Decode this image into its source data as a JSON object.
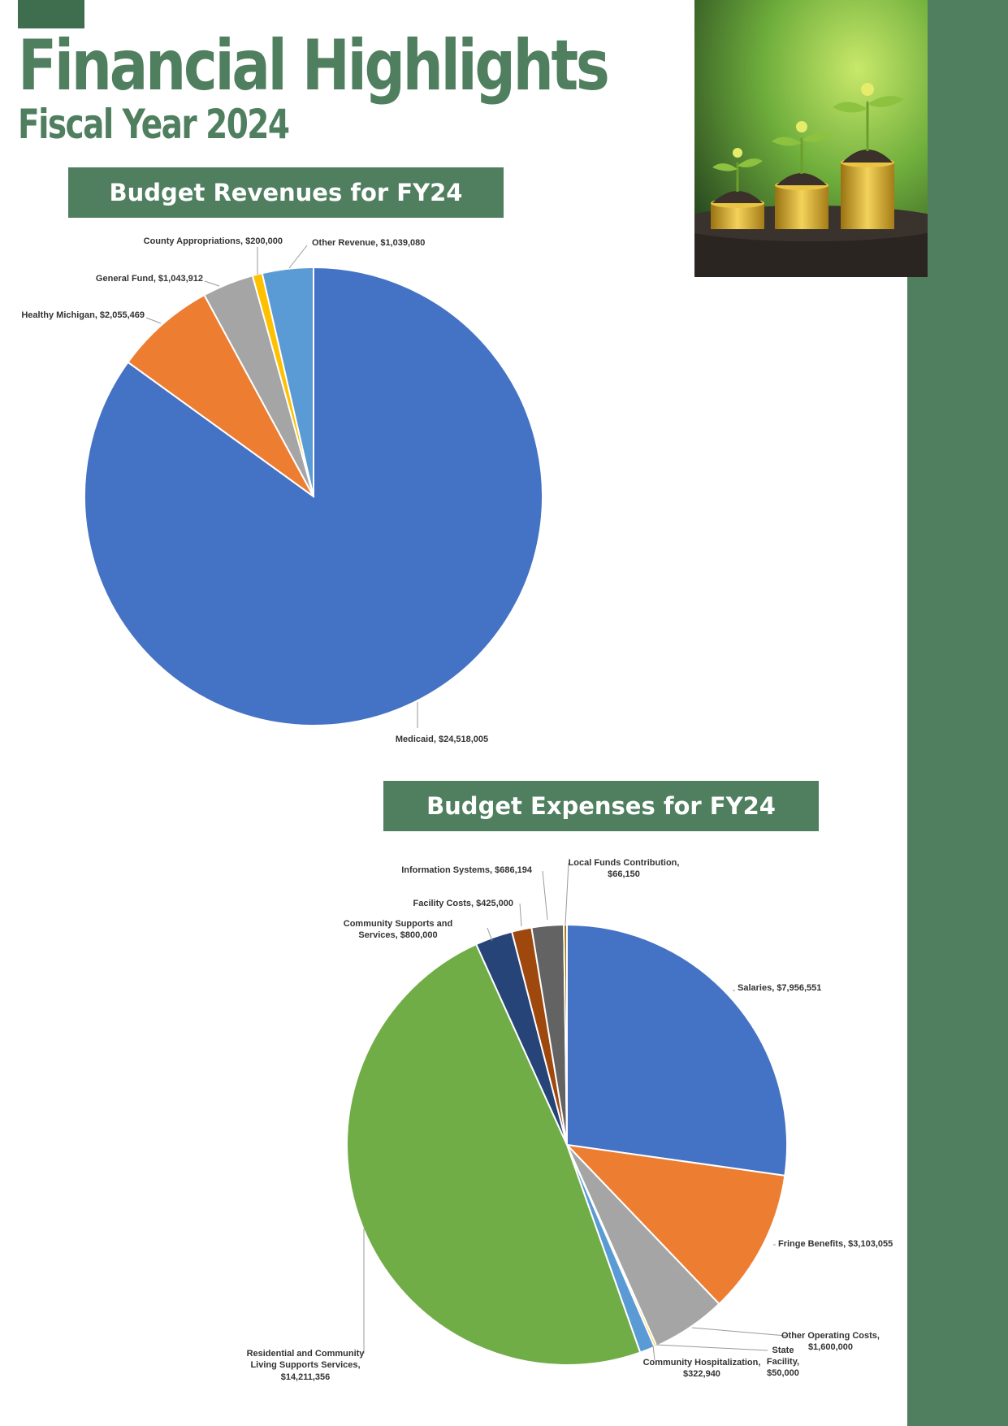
{
  "header": {
    "title": "Financial Highlights",
    "subtitle": "Fiscal Year 2024"
  },
  "colors": {
    "brand_green": "#4f7f5f"
  },
  "photo": {
    "icon": "coin-stacks-with-seedlings-icon"
  },
  "chart_data": [
    {
      "type": "pie",
      "title": "Budget Revenues for FY24",
      "slices": [
        {
          "label": "Medicaid",
          "value": 24518005,
          "display": "$24,518,005",
          "color": "#4472c4"
        },
        {
          "label": "Healthy Michigan",
          "value": 2055469,
          "display": "$2,055,469",
          "color": "#ed7d31"
        },
        {
          "label": "General Fund",
          "value": 1043912,
          "display": "$1,043,912",
          "color": "#a5a5a5"
        },
        {
          "label": "County Appropriations",
          "value": 200000,
          "display": "$200,000",
          "color": "#ffc000"
        },
        {
          "label": "Other Revenue",
          "value": 1039080,
          "display": "$1,039,080",
          "color": "#5b9bd5"
        }
      ],
      "order": "clockwise-from-top",
      "start_index": 0
    },
    {
      "type": "pie",
      "title": "Budget Expenses for FY24",
      "slices": [
        {
          "label": "Salaries",
          "value": 7956551,
          "display": "$7,956,551",
          "color": "#4472c4"
        },
        {
          "label": "Fringe Benefits",
          "value": 3103055,
          "display": "$3,103,055",
          "color": "#ed7d31"
        },
        {
          "label": "Other Operating Costs",
          "value": 1600000,
          "display": "$1,600,000",
          "color": "#a5a5a5"
        },
        {
          "label": "State Facility",
          "value": 50000,
          "display": "$50,000",
          "color": "#ffc000"
        },
        {
          "label": "Community Hospitalization",
          "value": 322940,
          "display": "$322,940",
          "color": "#5b9bd5"
        },
        {
          "label": "Residential and Community Living Supports Services",
          "value": 14211356,
          "display": "$14,211,356",
          "color": "#70ad47"
        },
        {
          "label": "Community Supports and Services",
          "value": 800000,
          "display": "$800,000",
          "color": "#264478"
        },
        {
          "label": "Facility Costs",
          "value": 425000,
          "display": "$425,000",
          "color": "#9e480e"
        },
        {
          "label": "Information Systems",
          "value": 686194,
          "display": "$686,194",
          "color": "#636363"
        },
        {
          "label": "Local Funds Contribution",
          "value": 66150,
          "display": "$66,150",
          "color": "#997300"
        }
      ],
      "order": "clockwise-from-top"
    }
  ]
}
